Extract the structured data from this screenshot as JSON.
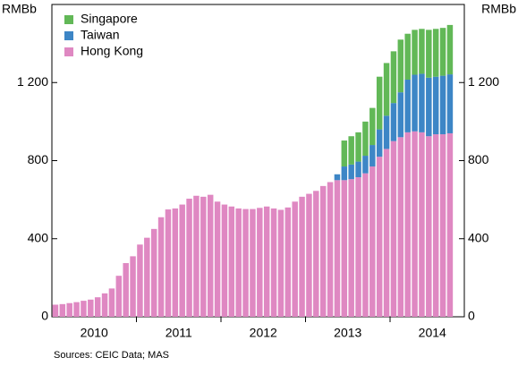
{
  "chart_data": {
    "type": "stacked_bar",
    "y_axis_label_left": "RMBb",
    "y_axis_label_right": "RMBb",
    "source": "Sources:   CEIC Data; MAS",
    "years": [
      "2010",
      "2011",
      "2012",
      "2013",
      "2014"
    ],
    "ylim": [
      0,
      1600
    ],
    "yticks": [
      0,
      400,
      800,
      {
        "value": 1200,
        "label": "1 200"
      }
    ],
    "grid": false,
    "legend": "top-left",
    "series": [
      {
        "name": "Singapore",
        "color": "#62b857",
        "values": [
          null,
          null,
          null,
          null,
          null,
          null,
          null,
          null,
          null,
          null,
          null,
          null,
          null,
          null,
          null,
          null,
          null,
          null,
          null,
          null,
          null,
          null,
          null,
          null,
          null,
          null,
          null,
          null,
          null,
          null,
          null,
          null,
          null,
          null,
          null,
          null,
          null,
          null,
          null,
          null,
          null,
          133,
          145,
          150,
          175,
          190,
          270,
          270,
          265,
          270,
          235,
          230,
          230,
          245,
          245,
          245,
          253
        ]
      },
      {
        "name": "Taiwan",
        "color": "#3d86c6",
        "values": [
          null,
          null,
          null,
          null,
          null,
          null,
          null,
          null,
          null,
          null,
          null,
          null,
          null,
          null,
          null,
          null,
          null,
          null,
          null,
          null,
          null,
          null,
          null,
          null,
          null,
          null,
          null,
          null,
          null,
          null,
          null,
          null,
          null,
          null,
          null,
          null,
          null,
          null,
          null,
          null,
          30,
          70,
          75,
          80,
          90,
          110,
          140,
          170,
          195,
          230,
          270,
          290,
          300,
          300,
          295,
          300,
          302
        ]
      },
      {
        "name": "Hong Kong",
        "color": "#df88c2",
        "values": [
          62,
          65,
          70,
          75,
          82,
          88,
          100,
          120,
          145,
          210,
          275,
          310,
          370,
          405,
          450,
          510,
          550,
          555,
          575,
          605,
          620,
          615,
          625,
          590,
          575,
          565,
          555,
          552,
          552,
          558,
          565,
          555,
          548,
          560,
          590,
          615,
          630,
          645,
          670,
          690,
          700,
          700,
          705,
          715,
          735,
          770,
          820,
          860,
          900,
          920,
          945,
          950,
          945,
          925,
          935,
          935,
          940
        ]
      }
    ]
  }
}
